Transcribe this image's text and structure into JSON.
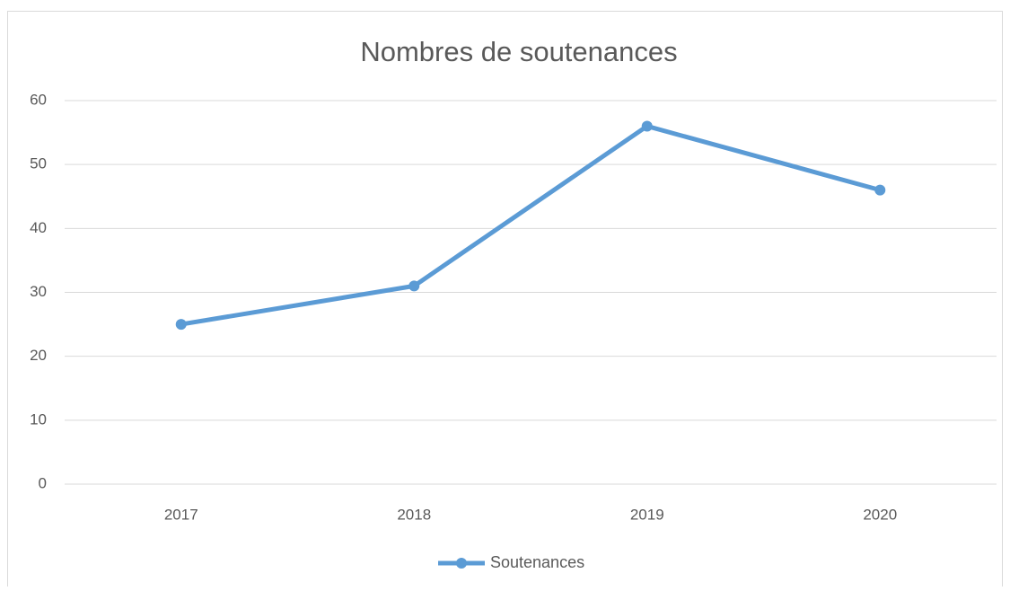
{
  "chart_data": {
    "type": "line",
    "title": "Nombres de soutenances",
    "categories": [
      "2017",
      "2018",
      "2019",
      "2020"
    ],
    "series": [
      {
        "name": "Soutenances",
        "color": "#5b9bd5",
        "values": [
          25,
          31,
          56,
          46
        ]
      }
    ],
    "ylim": [
      0,
      60
    ],
    "yticks": [
      0,
      10,
      20,
      30,
      40,
      50,
      60
    ],
    "grid": true,
    "legend": "bottom"
  }
}
